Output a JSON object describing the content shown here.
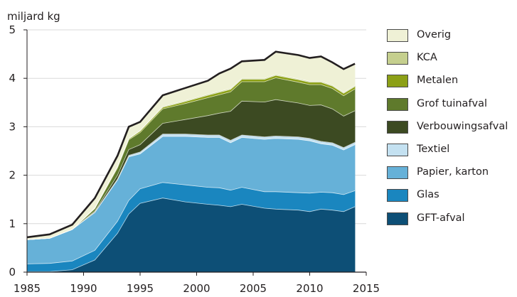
{
  "chart_data": {
    "type": "area",
    "ylabel": "miljard kg",
    "xlabel": "",
    "xlim": [
      1985,
      2015
    ],
    "ylim": [
      0,
      5
    ],
    "xticks": [
      "1985",
      "1990",
      "1995",
      "2000",
      "2005",
      "2010",
      "2015"
    ],
    "yticks": [
      "0",
      "1",
      "2",
      "3",
      "4",
      "5"
    ],
    "grid": "horizontal",
    "stacked": true,
    "legend_position": "right",
    "x": [
      1985,
      1987,
      1989,
      1991,
      1993,
      1994,
      1995,
      1997,
      1999,
      2001,
      2002,
      2003,
      2004,
      2006,
      2007,
      2009,
      2010,
      2011,
      2012,
      2013,
      2014
    ],
    "series": [
      {
        "name": "GFT-afval",
        "color": "#0d4f76",
        "values": [
          0.01,
          0.01,
          0.05,
          0.25,
          0.8,
          1.2,
          1.42,
          1.53,
          1.45,
          1.4,
          1.38,
          1.35,
          1.4,
          1.32,
          1.3,
          1.28,
          1.25,
          1.3,
          1.28,
          1.25,
          1.35
        ]
      },
      {
        "name": "Glas",
        "color": "#1a86bf",
        "values": [
          0.16,
          0.17,
          0.18,
          0.2,
          0.25,
          0.28,
          0.3,
          0.32,
          0.35,
          0.35,
          0.36,
          0.34,
          0.35,
          0.34,
          0.36,
          0.36,
          0.38,
          0.35,
          0.36,
          0.35,
          0.33
        ]
      },
      {
        "name": "Papier, karton",
        "color": "#66b1d8",
        "values": [
          0.5,
          0.52,
          0.65,
          0.78,
          0.85,
          0.9,
          0.72,
          0.95,
          1.0,
          1.03,
          1.04,
          0.98,
          1.03,
          1.08,
          1.1,
          1.1,
          1.08,
          1.0,
          0.98,
          0.92,
          0.95
        ]
      },
      {
        "name": "Textiel",
        "color": "#c4e1f1",
        "values": [
          0.0,
          0.0,
          0.0,
          0.01,
          0.02,
          0.03,
          0.04,
          0.05,
          0.05,
          0.05,
          0.05,
          0.05,
          0.05,
          0.05,
          0.05,
          0.05,
          0.05,
          0.05,
          0.05,
          0.05,
          0.05
        ]
      },
      {
        "name": "Verbouwingsafval",
        "color": "#3c4a22",
        "values": [
          0.0,
          0.0,
          0.0,
          0.02,
          0.08,
          0.12,
          0.15,
          0.22,
          0.3,
          0.4,
          0.45,
          0.6,
          0.7,
          0.72,
          0.75,
          0.7,
          0.68,
          0.75,
          0.7,
          0.65,
          0.65
        ]
      },
      {
        "name": "Grof tuinafval",
        "color": "#5f7a2c",
        "values": [
          0.0,
          0.0,
          0.0,
          0.05,
          0.15,
          0.2,
          0.25,
          0.3,
          0.33,
          0.37,
          0.38,
          0.4,
          0.4,
          0.42,
          0.45,
          0.43,
          0.43,
          0.42,
          0.42,
          0.42,
          0.45
        ]
      },
      {
        "name": "Metalen",
        "color": "#8ca016",
        "values": [
          0.0,
          0.0,
          0.0,
          0.01,
          0.02,
          0.02,
          0.03,
          0.03,
          0.04,
          0.05,
          0.05,
          0.05,
          0.05,
          0.05,
          0.05,
          0.05,
          0.05,
          0.05,
          0.05,
          0.05,
          0.05
        ]
      },
      {
        "name": "KCA",
        "color": "#c5cf8e",
        "values": [
          0.0,
          0.0,
          0.0,
          0.01,
          0.01,
          0.01,
          0.01,
          0.02,
          0.02,
          0.02,
          0.02,
          0.02,
          0.02,
          0.02,
          0.02,
          0.02,
          0.02,
          0.02,
          0.02,
          0.02,
          0.02
        ]
      },
      {
        "name": "Overig",
        "color": "#eff1d6",
        "values": [
          0.05,
          0.08,
          0.1,
          0.2,
          0.22,
          0.24,
          0.18,
          0.23,
          0.26,
          0.28,
          0.37,
          0.41,
          0.35,
          0.38,
          0.47,
          0.49,
          0.48,
          0.51,
          0.47,
          0.48,
          0.45
        ]
      }
    ]
  }
}
